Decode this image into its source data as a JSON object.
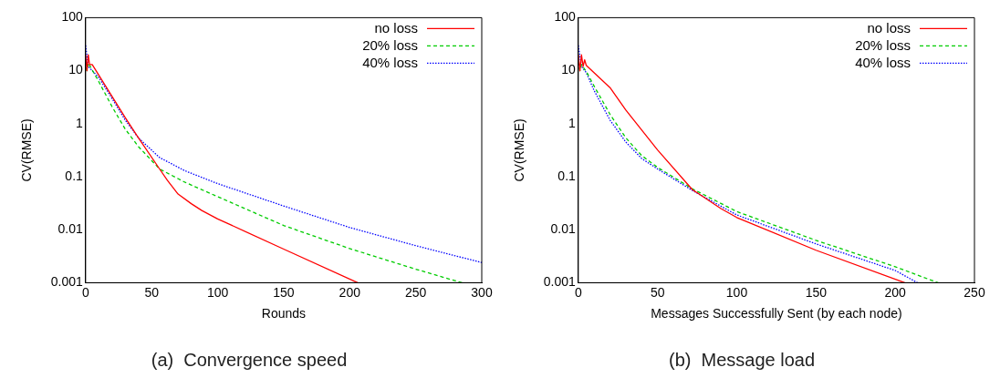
{
  "chart_data": [
    {
      "type": "line",
      "title": "(a)  Convergence speed",
      "xlabel": "Rounds",
      "ylabel": "CV(RMSE)",
      "log": "y",
      "legend": "top right",
      "grid": false,
      "xlim": [
        0,
        300
      ],
      "xticks": [
        0,
        50,
        100,
        150,
        200,
        250,
        300
      ],
      "ylim": [
        0.001,
        100
      ],
      "yticks": [
        0.001,
        0.01,
        0.1,
        1,
        10,
        100
      ],
      "series": [
        {
          "name": "no loss",
          "color": "#ff0000",
          "line_style": "solid",
          "x": [
            0,
            1,
            2,
            3,
            5,
            30,
            40,
            56,
            62,
            70,
            80,
            88,
            100,
            150,
            206
          ],
          "values": [
            20,
            10,
            20,
            13,
            13,
            1.3,
            0.54,
            0.14,
            0.085,
            0.047,
            0.031,
            0.023,
            0.016,
            0.0043,
            0.001
          ]
        },
        {
          "name": "20% loss",
          "color": "#00cc00",
          "line_style": "dashed",
          "x": [
            0,
            1,
            2,
            10,
            20,
            30,
            40,
            56,
            75,
            100,
            150,
            200,
            250,
            285
          ],
          "values": [
            15,
            10,
            14,
            6.2,
            2.1,
            0.79,
            0.37,
            0.14,
            0.079,
            0.042,
            0.012,
            0.0044,
            0.0018,
            0.001
          ]
        },
        {
          "name": "40% loss",
          "color": "#0000ff",
          "line_style": "dotted",
          "x": [
            0,
            2,
            10,
            20,
            30,
            40,
            56,
            75,
            100,
            150,
            200,
            250,
            300
          ],
          "values": [
            30,
            12,
            7.4,
            3,
            1.17,
            0.54,
            0.23,
            0.13,
            0.074,
            0.028,
            0.011,
            0.005,
            0.0024
          ]
        }
      ]
    },
    {
      "type": "line",
      "title": "(b)  Message load",
      "xlabel": "Messages Successfully Sent (by each node)",
      "ylabel": "CV(RMSE)",
      "log": "y",
      "legend": "top right",
      "grid": false,
      "xlim": [
        0,
        250
      ],
      "xticks": [
        0,
        50,
        100,
        150,
        200,
        250
      ],
      "ylim": [
        0.001,
        100
      ],
      "yticks": [
        0.001,
        0.01,
        0.1,
        1,
        10,
        100
      ],
      "series": [
        {
          "name": "no loss",
          "color": "#ff0000",
          "line_style": "solid",
          "x": [
            0,
            1,
            2,
            3,
            4,
            5,
            20,
            30,
            50,
            72,
            90,
            100,
            150,
            206
          ],
          "values": [
            20,
            10,
            20,
            12,
            16,
            12.6,
            4.8,
            1.8,
            0.32,
            0.057,
            0.025,
            0.017,
            0.0041,
            0.001
          ]
        },
        {
          "name": "20% loss",
          "color": "#00cc00",
          "line_style": "dashed",
          "x": [
            0,
            1,
            2,
            5,
            10,
            20,
            30,
            40,
            50,
            72,
            100,
            150,
            200,
            227
          ],
          "values": [
            15,
            10,
            13,
            9.7,
            5.1,
            1.5,
            0.54,
            0.25,
            0.15,
            0.059,
            0.022,
            0.0063,
            0.002,
            0.001
          ]
        },
        {
          "name": "40% loss",
          "color": "#0000ff",
          "line_style": "dotted",
          "x": [
            0,
            2,
            5,
            10,
            20,
            30,
            40,
            50,
            72,
            100,
            150,
            200,
            214
          ],
          "values": [
            30,
            12,
            9.2,
            4.2,
            1.17,
            0.45,
            0.22,
            0.14,
            0.055,
            0.019,
            0.0054,
            0.0017,
            0.001
          ]
        }
      ]
    }
  ]
}
